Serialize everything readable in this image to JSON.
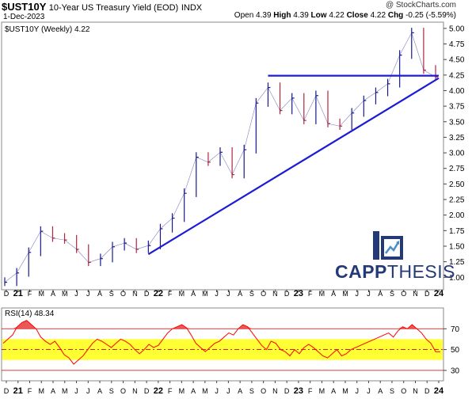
{
  "header": {
    "symbol": "$UST10Y",
    "description": "10-Year US Treasury Yield (EOD)",
    "exchange": "INDX",
    "date": "1-Dec-2023",
    "copyright": "@ StockCharts.com",
    "open_label": "Open",
    "open": "4.39",
    "high_label": "High",
    "high": "4.39",
    "low_label": "Low",
    "low": "4.22",
    "close_label": "Close",
    "close": "4.22",
    "chg_label": "Chg",
    "chg": "-0.25 (-5.59%)"
  },
  "legend": {
    "price": "$UST10Y (Weekly) 4.22",
    "rsi": "RSI(14) 48.34"
  },
  "logo": {
    "word1": "CAPP",
    "word2": "THESIS"
  },
  "chart_data": [
    {
      "type": "line",
      "title": "$UST10Y (Weekly) 4.22",
      "ylim": [
        0.8,
        5.1
      ],
      "y_ticks": [
        "1.00",
        "1.25",
        "1.50",
        "1.75",
        "2.00",
        "2.25",
        "2.50",
        "2.75",
        "3.00",
        "3.25",
        "3.50",
        "3.75",
        "4.00",
        "4.25",
        "4.50",
        "4.75",
        "5.00"
      ],
      "x_ticks": [
        "D",
        "21",
        "F",
        "M",
        "A",
        "M",
        "J",
        "J",
        "A",
        "S",
        "O",
        "N",
        "D",
        "22",
        "F",
        "M",
        "A",
        "M",
        "J",
        "J",
        "A",
        "S",
        "O",
        "N",
        "D",
        "23",
        "F",
        "M",
        "A",
        "M",
        "J",
        "J",
        "A",
        "S",
        "O",
        "N",
        "D",
        "24"
      ],
      "series": [
        {
          "color": "#1f1f9e",
          "x": [
            "2020-12",
            "2021-01",
            "2021-02",
            "2021-03",
            "2021-04",
            "2021-05",
            "2021-06",
            "2021-07",
            "2021-08",
            "2021-09",
            "2021-10",
            "2021-11",
            "2021-12",
            "2022-01",
            "2022-02",
            "2022-03",
            "2022-04",
            "2022-05",
            "2022-06",
            "2022-07",
            "2022-08",
            "2022-09",
            "2022-10",
            "2022-11",
            "2022-12",
            "2023-01",
            "2023-02",
            "2023-03",
            "2023-04",
            "2023-05",
            "2023-06",
            "2023-07",
            "2023-08",
            "2023-09",
            "2023-10",
            "2023-11",
            "2023-12"
          ],
          "values": [
            0.92,
            1.07,
            1.4,
            1.74,
            1.63,
            1.6,
            1.45,
            1.24,
            1.3,
            1.49,
            1.55,
            1.45,
            1.51,
            1.78,
            1.95,
            2.35,
            2.93,
            2.85,
            3.01,
            2.65,
            3.05,
            3.8,
            4.05,
            3.68,
            3.88,
            3.52,
            3.92,
            3.47,
            3.43,
            3.64,
            3.84,
            3.97,
            4.11,
            4.57,
            4.93,
            4.33,
            4.22
          ]
        }
      ],
      "trendlines": [
        {
          "from": [
            "2021-12",
            1.37
          ],
          "to": [
            "2023-12",
            4.2
          ]
        },
        {
          "from": [
            "2022-10",
            4.24
          ],
          "to": [
            "2023-12",
            4.24
          ]
        }
      ]
    },
    {
      "type": "line",
      "title": "RSI(14) 48.34",
      "ylim": [
        20,
        90
      ],
      "y_ticks": [
        "30",
        "50",
        "70"
      ],
      "bands": [
        {
          "from": 40,
          "to": 60,
          "color": "#ffff33"
        }
      ],
      "levels": [
        30,
        50,
        70
      ],
      "series": [
        {
          "color": "#ff0000",
          "values": [
            56,
            60,
            64,
            72,
            76,
            78,
            74,
            70,
            62,
            58,
            55,
            58,
            52,
            45,
            42,
            36,
            40,
            44,
            50,
            56,
            60,
            58,
            55,
            52,
            56,
            60,
            58,
            55,
            50,
            46,
            50,
            55,
            52,
            54,
            60,
            66,
            70,
            72,
            74,
            71,
            64,
            56,
            52,
            48,
            52,
            56,
            58,
            62,
            66,
            64,
            70,
            74,
            72,
            66,
            60,
            54,
            50,
            58,
            56,
            50,
            48,
            44,
            50,
            46,
            52,
            55,
            52,
            48,
            44,
            42,
            46,
            50,
            44,
            46,
            50,
            52,
            54,
            56,
            58,
            60,
            62,
            64,
            66,
            62,
            68,
            72,
            70,
            74,
            70,
            66,
            60,
            56,
            48,
            48
          ]
        }
      ]
    }
  ]
}
